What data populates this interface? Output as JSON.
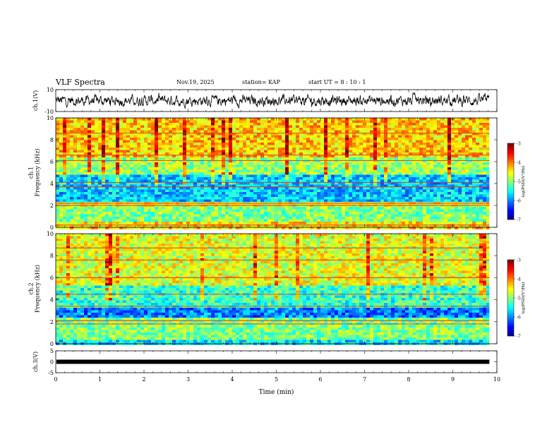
{
  "header": {
    "title": "VLF Spectra",
    "date": "Nov.19, 2025",
    "station": "station= KAP",
    "start": "start  UT  =   8  : 10 : 1"
  },
  "chart_data": [
    {
      "type": "line",
      "name": "ch1-waveform",
      "ylabel": "ch.1(V)",
      "ylim": [
        -10,
        10
      ],
      "yticks": [
        "10",
        "-10"
      ],
      "x_range_min": [
        0,
        9.83
      ],
      "description_values": "noisy waveform oscillating roughly between -6 and 6 V"
    },
    {
      "type": "heatmap",
      "name": "ch1-spectrogram",
      "ylabel": "ch.1\nFrequency (kHz)",
      "ylim": [
        0,
        10
      ],
      "yticks": [
        "0",
        "2",
        "4",
        "6",
        "8",
        "10"
      ],
      "x_range_min": [
        0,
        9.83
      ],
      "bands": [
        {
          "from": 0.0,
          "to": 0.5,
          "log_psd": -4.4
        },
        {
          "from": 0.5,
          "to": 1.8,
          "log_psd": -5.0
        },
        {
          "from": 1.8,
          "to": 2.4,
          "log_psd": -4.6
        },
        {
          "from": 2.4,
          "to": 4.9,
          "log_psd": -5.7
        },
        {
          "from": 4.9,
          "to": 6.5,
          "log_psd": -4.9
        },
        {
          "from": 6.5,
          "to": 10.0,
          "log_psd": -4.3
        }
      ],
      "lines_khz": [
        0.2,
        2.0,
        2.2,
        3.7,
        4.1,
        6.1,
        6.6,
        8.6
      ],
      "colorbar": {
        "label": "log(PSD)(V²/Hz)",
        "min": -7,
        "max": -3,
        "ticks": [
          "-3",
          "-4",
          "-5",
          "-6",
          "-7"
        ]
      }
    },
    {
      "type": "heatmap",
      "name": "ch2-spectrogram",
      "ylabel": "ch.2\nFrequency (kHz)",
      "ylim": [
        0,
        10
      ],
      "yticks": [
        "0",
        "2",
        "4",
        "6",
        "8",
        "10"
      ],
      "x_range_min": [
        0,
        9.83
      ],
      "bands": [
        {
          "from": 0.0,
          "to": 0.4,
          "log_psd": -5.6
        },
        {
          "from": 0.4,
          "to": 2.4,
          "log_psd": -5.0
        },
        {
          "from": 2.4,
          "to": 3.3,
          "log_psd": -6.0
        },
        {
          "from": 3.3,
          "to": 5.2,
          "log_psd": -5.3
        },
        {
          "from": 5.2,
          "to": 10.0,
          "log_psd": -4.6
        }
      ],
      "lines_khz": [
        1.8,
        2.1,
        3.4,
        4.5,
        6.0,
        7.6,
        8.7
      ],
      "colorbar": {
        "label": "log(PSD)(V²/Hz)",
        "min": -7,
        "max": -3,
        "ticks": [
          "-3",
          "-4",
          "-5",
          "-6",
          "-7"
        ]
      }
    },
    {
      "type": "line",
      "name": "ch3-waveform",
      "ylabel": "ch.3(V)",
      "ylim": [
        -5,
        5
      ],
      "yticks": [
        "5",
        "0",
        "-5"
      ],
      "x_range_min": [
        0,
        9.83
      ],
      "level": 0
    }
  ],
  "xaxis": {
    "label": "Time (min)",
    "min": 0,
    "max": 10,
    "ticks": [
      "0",
      "1",
      "2",
      "3",
      "4",
      "5",
      "6",
      "7",
      "8",
      "9",
      "10"
    ]
  }
}
